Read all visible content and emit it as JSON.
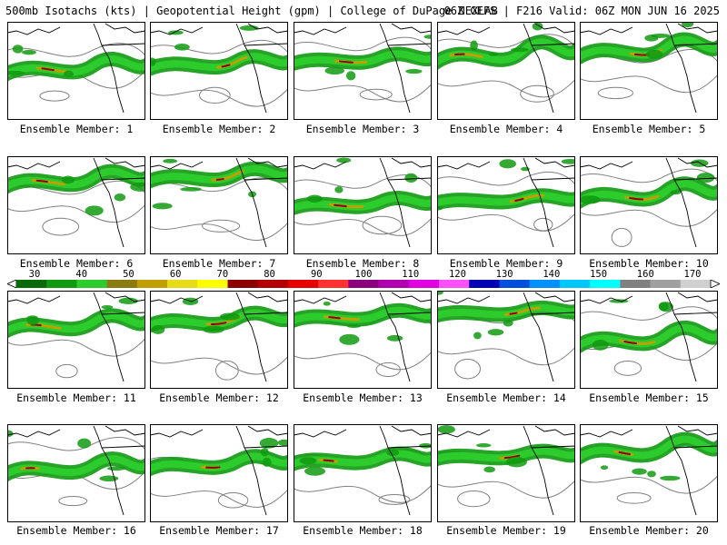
{
  "header": {
    "left": "500mb Isotachs (kts) | Geopotential Height (gpm) | College of DuPage NEXLAB",
    "right": "06Z GEFS | F216 Valid: 06Z MON JUN 16 2025"
  },
  "colorbar": {
    "ticks": [
      "30",
      "40",
      "50",
      "60",
      "70",
      "80",
      "90",
      "100",
      "110",
      "120",
      "130",
      "140",
      "150",
      "160",
      "170"
    ],
    "colors": [
      "#0a6a0a",
      "#109a10",
      "#2ccc2c",
      "#8c7c10",
      "#c0a000",
      "#e6dc18",
      "#ffff00",
      "#8c0000",
      "#b40000",
      "#e60000",
      "#ff3030",
      "#8c0080",
      "#b000b0",
      "#e000e0",
      "#ff50ff",
      "#0000b4",
      "#0050dc",
      "#0090ff",
      "#00c8ff",
      "#00ffff",
      "#808080",
      "#a0a0a0",
      "#d0d0d0"
    ]
  },
  "members": [
    {
      "label": "Ensemble Member: 1"
    },
    {
      "label": "Ensemble Member: 2"
    },
    {
      "label": "Ensemble Member: 3"
    },
    {
      "label": "Ensemble Member: 4"
    },
    {
      "label": "Ensemble Member: 5"
    },
    {
      "label": "Ensemble Member: 6"
    },
    {
      "label": "Ensemble Member: 7"
    },
    {
      "label": "Ensemble Member: 8"
    },
    {
      "label": "Ensemble Member: 9"
    },
    {
      "label": "Ensemble Member: 10"
    },
    {
      "label": "Ensemble Member: 11"
    },
    {
      "label": "Ensemble Member: 12"
    },
    {
      "label": "Ensemble Member: 13"
    },
    {
      "label": "Ensemble Member: 14"
    },
    {
      "label": "Ensemble Member: 15"
    },
    {
      "label": "Ensemble Member: 16"
    },
    {
      "label": "Ensemble Member: 17"
    },
    {
      "label": "Ensemble Member: 18"
    },
    {
      "label": "Ensemble Member: 19"
    },
    {
      "label": "Ensemble Member: 20"
    }
  ],
  "colors": {
    "jet_low": "#109a10",
    "jet_mid": "#2ccc2c",
    "jet_core": "#c0a000",
    "jet_max": "#8c0000",
    "contour": "#808080",
    "coast": "#000000"
  }
}
